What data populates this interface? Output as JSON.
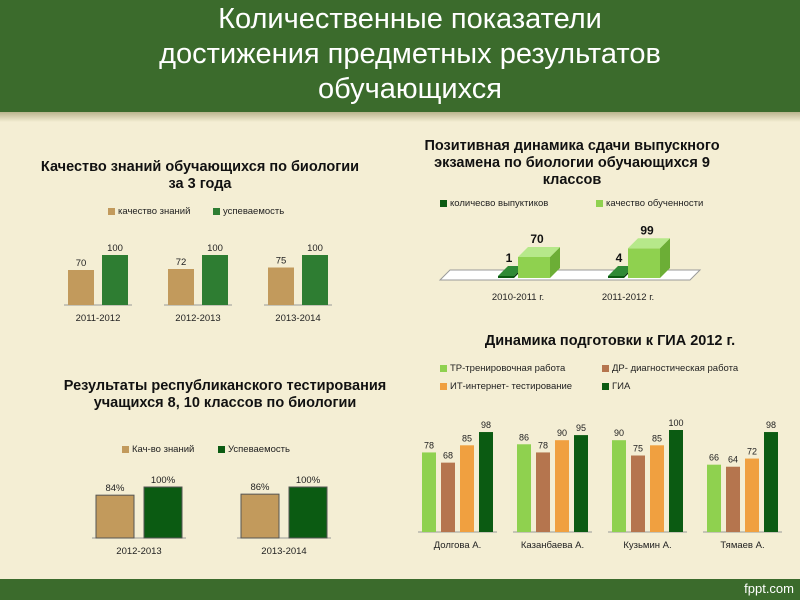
{
  "title_lines": [
    "Количественные показатели",
    "достижения предметных результатов",
    "обучающихся"
  ],
  "footer_text": "fppt.com",
  "colors": {
    "header": "#3b6b2c",
    "background": "#f4eed4",
    "tan": "#c29a5c",
    "green": "#2e7d32",
    "dark_green": "#0b5b12",
    "light_green": "#8fd14f",
    "orange": "#f0a040",
    "brown": "#b5754e"
  },
  "chart_data": [
    {
      "type": "bar",
      "title": "Качество знаний обучающихся по биологии за 3 года",
      "categories": [
        "2011-2012",
        "2012-2013",
        "2013-2014"
      ],
      "series": [
        {
          "name": "качество знаний",
          "values": [
            70,
            72,
            75
          ],
          "color": "#c29a5c"
        },
        {
          "name": "успеваемость",
          "values": [
            100,
            100,
            100
          ],
          "color": "#2e7d32"
        }
      ],
      "ylim": [
        0,
        100
      ],
      "legend": "top"
    },
    {
      "type": "bar",
      "title": "Позитивная динамика сдачи выпускного экзамена по биологии обучающихся 9 классов",
      "categories": [
        "2010-2011 г.",
        "2011-2012 г."
      ],
      "series": [
        {
          "name": "количесво выпуктиков",
          "values": [
            1,
            4
          ],
          "color": "#0b5b12"
        },
        {
          "name": "качество обученности",
          "values": [
            70,
            99
          ],
          "color": "#8fd14f"
        }
      ],
      "ylim": [
        0,
        100
      ],
      "legend": "top"
    },
    {
      "type": "bar",
      "title": "Результаты республиканского тестирования учащихся 8, 10 классов по биологии",
      "categories": [
        "2012-2013",
        "2013-2014"
      ],
      "series": [
        {
          "name": "Кач-во знаний",
          "values": [
            84,
            86
          ],
          "labels": [
            "84%",
            "86%"
          ],
          "color": "#c29a5c"
        },
        {
          "name": "Успеваемость",
          "values": [
            100,
            100
          ],
          "labels": [
            "100%",
            "100%"
          ],
          "color": "#0b5b12"
        }
      ],
      "ylim": [
        0,
        100
      ],
      "legend": "top"
    },
    {
      "type": "bar",
      "title": "Динамика подготовки к ГИА 2012 г.",
      "categories": [
        "Долгова А.",
        "Казанбаева А.",
        "Кузьмин А.",
        "Тямаев А."
      ],
      "series": [
        {
          "name": "ТР-тренировочная работа",
          "values": [
            78,
            86,
            90,
            66
          ],
          "color": "#8fd14f"
        },
        {
          "name": "ДР- диагностическая работа",
          "values": [
            68,
            78,
            75,
            64
          ],
          "color": "#b5754e"
        },
        {
          "name": "ИТ-интернет- тестирование",
          "values": [
            85,
            90,
            85,
            72
          ],
          "color": "#f0a040"
        },
        {
          "name": "ГИА",
          "values": [
            98,
            95,
            100,
            98
          ],
          "color": "#0b5b12"
        }
      ],
      "ylim": [
        0,
        100
      ],
      "legend": "top"
    }
  ]
}
